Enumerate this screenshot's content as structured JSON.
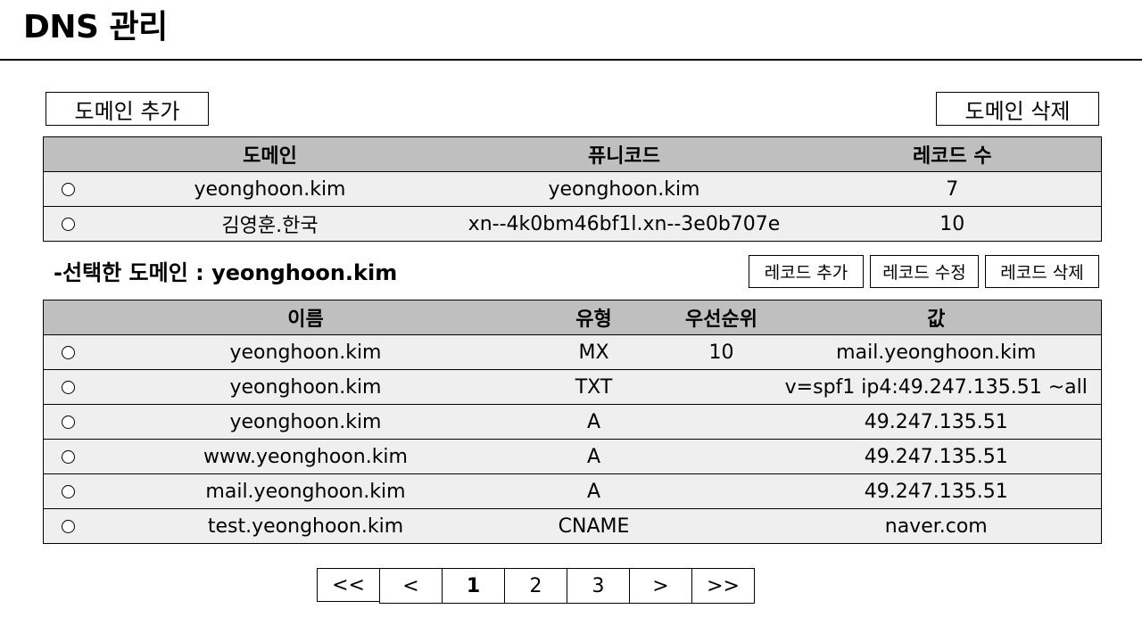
{
  "page": {
    "title": "DNS 관리"
  },
  "domain_toolbar": {
    "add_label": "도메인 추가",
    "delete_label": "도메인 삭제"
  },
  "domain_table": {
    "columns": [
      "도메인",
      "퓨니코드",
      "레코드 수"
    ],
    "rows": [
      {
        "domain": "yeonghoon.kim",
        "punycode": "yeonghoon.kim",
        "record_count": "7"
      },
      {
        "domain": "김영훈.한국",
        "punycode": "xn--4k0bm46bf1l.xn--3e0b707e",
        "record_count": "10"
      }
    ]
  },
  "selected": {
    "label": "-선택한 도메인 : yeonghoon.kim"
  },
  "record_toolbar": {
    "add_label": "레코드 추가",
    "edit_label": "레코드 수정",
    "delete_label": "레코드 삭제"
  },
  "record_table": {
    "columns": [
      "이름",
      "유형",
      "우선순위",
      "값"
    ],
    "rows": [
      {
        "name": "yeonghoon.kim",
        "type": "MX",
        "priority": "10",
        "value": "mail.yeonghoon.kim"
      },
      {
        "name": "yeonghoon.kim",
        "type": "TXT",
        "priority": "",
        "value": "v=spf1 ip4:49.247.135.51 ~all"
      },
      {
        "name": "yeonghoon.kim",
        "type": "A",
        "priority": "",
        "value": "49.247.135.51"
      },
      {
        "name": "www.yeonghoon.kim",
        "type": "A",
        "priority": "",
        "value": "49.247.135.51"
      },
      {
        "name": "mail.yeonghoon.kim",
        "type": "A",
        "priority": "",
        "value": "49.247.135.51"
      },
      {
        "name": "test.yeonghoon.kim",
        "type": "CNAME",
        "priority": "",
        "value": "naver.com"
      }
    ]
  },
  "pagination": {
    "first": "<<",
    "prev": "<",
    "pages": [
      "1",
      "2",
      "3"
    ],
    "next": ">",
    "last": ">>",
    "current": "1"
  }
}
